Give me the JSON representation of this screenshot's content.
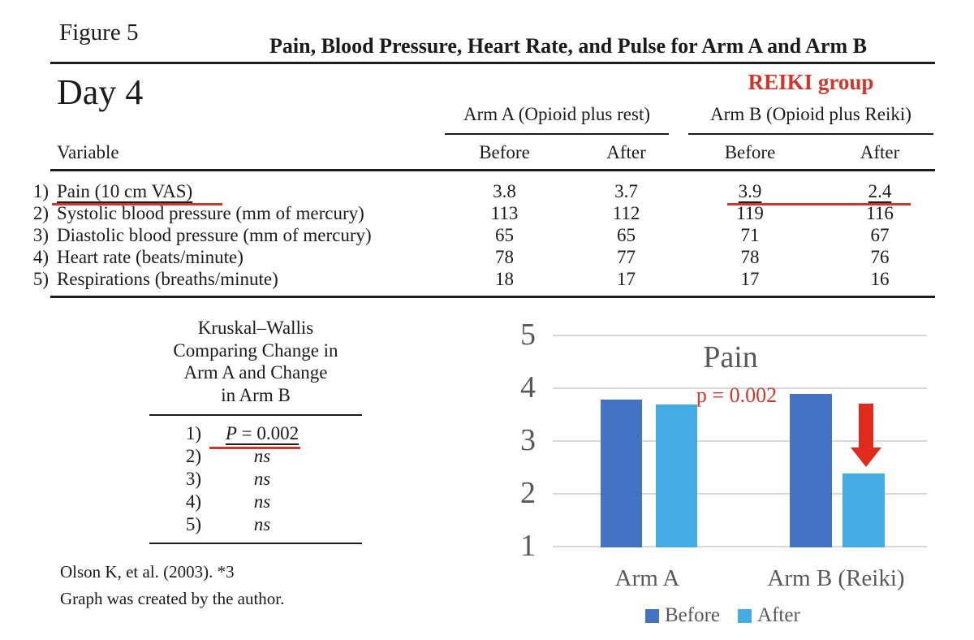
{
  "header": {
    "figure_label": "Figure 5",
    "title": "Pain, Blood Pressure, Heart Rate, and Pulse for Arm A and Arm B",
    "day_label": "Day 4"
  },
  "table": {
    "reiki_group_label": "REIKI group",
    "arm_a_header": "Arm A (Opioid plus rest)",
    "arm_b_header": "Arm B (Opioid plus Reiki)",
    "variable_header": "Variable",
    "subheaders": [
      "Before",
      "After",
      "Before",
      "After"
    ],
    "rows": [
      {
        "num": "1)",
        "label": "Pain (10 cm VAS)",
        "values": [
          "3.8",
          "3.7",
          "3.9",
          "2.4"
        ]
      },
      {
        "num": "2)",
        "label": "Systolic blood pressure (mm of mercury)",
        "values": [
          "113",
          "112",
          "119",
          "116"
        ]
      },
      {
        "num": "3)",
        "label": "Diastolic blood pressure (mm of mercury)",
        "values": [
          "65",
          "65",
          "71",
          "67"
        ]
      },
      {
        "num": "4)",
        "label": "Heart rate (beats/minute)",
        "values": [
          "78",
          "77",
          "78",
          "76"
        ]
      },
      {
        "num": "5)",
        "label": "Respirations (breaths/minute)",
        "values": [
          "18",
          "17",
          "17",
          "16"
        ]
      }
    ]
  },
  "stats": {
    "title_lines": [
      "Kruskal–Wallis",
      "Comparing Change in",
      "Arm A and Change",
      "in Arm B"
    ],
    "items": [
      {
        "num": "1)",
        "p_var": "P",
        "value": " = 0.002"
      },
      {
        "num": "2)",
        "value": "ns"
      },
      {
        "num": "3)",
        "value": "ns"
      },
      {
        "num": "4)",
        "value": "ns"
      },
      {
        "num": "5)",
        "value": "ns"
      }
    ]
  },
  "footer": {
    "citation": "Olson K, et al. (2003). *3",
    "note": "Graph was created by the author."
  },
  "chart_data": {
    "type": "bar",
    "title": "Pain",
    "annotation": "p = 0.002",
    "categories": [
      "Arm A",
      "Arm B (Reiki)"
    ],
    "series": [
      {
        "name": "Before",
        "color": "#4472C4",
        "values": [
          3.8,
          3.9
        ]
      },
      {
        "name": "After",
        "color": "#45ACE3",
        "values": [
          3.7,
          2.4
        ]
      }
    ],
    "ylim": [
      1,
      5
    ],
    "yticks": [
      "5",
      "4",
      "3",
      "2",
      "1"
    ],
    "grid": true,
    "legend_position": "bottom",
    "annotation_color": "#D0372B",
    "arrow": {
      "description": "red downward arrow above Arm B After bar",
      "color": "#E02B1C"
    }
  },
  "colors": {
    "accent_red": "#D0372B",
    "chart_text_gray": "#595959",
    "gridline_gray": "#D8D8D8"
  }
}
